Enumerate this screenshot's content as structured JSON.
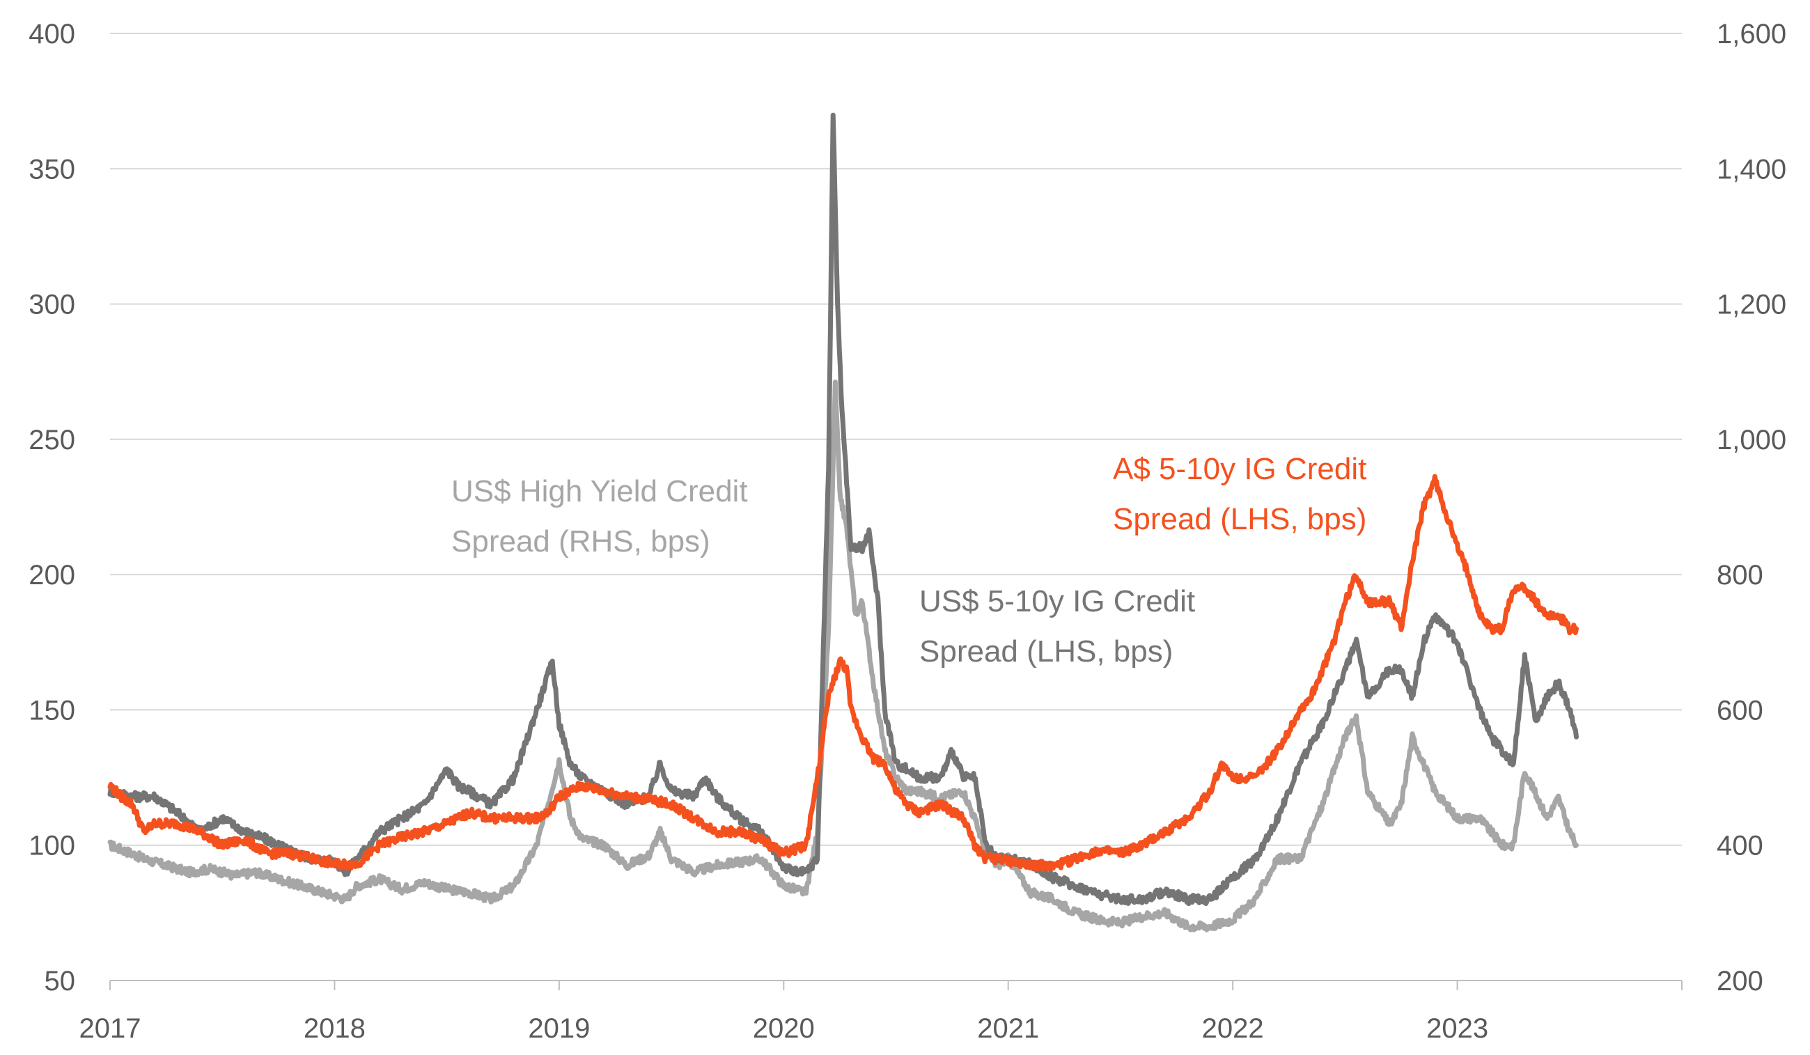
{
  "chart_data": {
    "type": "line",
    "title": "",
    "xlabel": "",
    "ylabel": "",
    "grid": true,
    "x_range": [
      2017.0,
      2024.0
    ],
    "x_tick_labels": [
      "2017",
      "2018",
      "2019",
      "2020",
      "2021",
      "2022",
      "2023"
    ],
    "x_tick_values": [
      2017,
      2018,
      2019,
      2020,
      2021,
      2022,
      2023
    ],
    "y_left": {
      "range": [
        50,
        400
      ],
      "ticks": [
        50,
        100,
        150,
        200,
        250,
        300,
        350,
        400
      ],
      "tick_labels": [
        "50",
        "100",
        "150",
        "200",
        "250",
        "300",
        "350",
        "400"
      ]
    },
    "y_right": {
      "range": [
        200,
        1600
      ],
      "ticks": [
        200,
        400,
        600,
        800,
        1000,
        1200,
        1400,
        1600
      ],
      "tick_labels": [
        "200",
        "400",
        "600",
        "800",
        "1,000",
        "1,200",
        "1,400",
        "1,600"
      ]
    },
    "annotations": [
      {
        "lines": [
          "US$ High Yield Credit",
          "Spread (RHS, bps)"
        ],
        "color": "#a6a6a6",
        "series": "us_hy"
      },
      {
        "lines": [
          "US$ 5-10y IG Credit",
          "Spread (LHS, bps)"
        ],
        "color": "#757575",
        "series": "us_ig"
      },
      {
        "lines": [
          "A$ 5-10y IG Credit",
          "Spread (LHS, bps)"
        ],
        "color": "#f4511e",
        "series": "au_ig"
      }
    ],
    "series": [
      {
        "key": "us_hy",
        "axis": "right",
        "color": "#a6a6a6",
        "x": [
          2017.0,
          2017.08,
          2017.15,
          2017.25,
          2017.35,
          2017.45,
          2017.55,
          2017.65,
          2017.75,
          2017.85,
          2017.95,
          2018.05,
          2018.1,
          2018.2,
          2018.3,
          2018.4,
          2018.5,
          2018.6,
          2018.7,
          2018.8,
          2018.9,
          2018.95,
          2019.0,
          2019.05,
          2019.1,
          2019.2,
          2019.3,
          2019.4,
          2019.45,
          2019.5,
          2019.6,
          2019.7,
          2019.8,
          2019.9,
          2020.0,
          2020.1,
          2020.15,
          2020.2,
          2020.23,
          2020.25,
          2020.28,
          2020.32,
          2020.35,
          2020.4,
          2020.45,
          2020.5,
          2020.55,
          2020.6,
          2020.7,
          2020.8,
          2020.85,
          2020.9,
          2020.95,
          2021.0,
          2021.1,
          2021.2,
          2021.3,
          2021.4,
          2021.5,
          2021.6,
          2021.7,
          2021.8,
          2021.9,
          2022.0,
          2022.1,
          2022.2,
          2022.3,
          2022.4,
          2022.5,
          2022.55,
          2022.6,
          2022.7,
          2022.75,
          2022.8,
          2022.9,
          2023.0,
          2023.1,
          2023.2,
          2023.25,
          2023.3,
          2023.4,
          2023.45,
          2023.5,
          2023.53
        ],
        "y": [
          400,
          390,
          380,
          370,
          360,
          365,
          355,
          360,
          350,
          340,
          330,
          320,
          340,
          350,
          335,
          345,
          335,
          330,
          320,
          340,
          400,
          460,
          525,
          440,
          410,
          400,
          370,
          385,
          420,
          380,
          360,
          370,
          375,
          380,
          340,
          330,
          420,
          720,
          1080,
          920,
          870,
          740,
          760,
          640,
          540,
          500,
          480,
          480,
          470,
          480,
          440,
          390,
          370,
          380,
          330,
          320,
          300,
          290,
          285,
          295,
          300,
          280,
          280,
          290,
          320,
          380,
          380,
          460,
          560,
          590,
          480,
          430,
          460,
          560,
          480,
          440,
          440,
          400,
          400,
          510,
          440,
          470,
          420,
          400
        ]
      },
      {
        "key": "us_ig",
        "axis": "left",
        "color": "#757575",
        "x": [
          2017.0,
          2017.1,
          2017.2,
          2017.3,
          2017.4,
          2017.5,
          2017.6,
          2017.7,
          2017.8,
          2017.9,
          2018.0,
          2018.05,
          2018.1,
          2018.2,
          2018.3,
          2018.4,
          2018.5,
          2018.55,
          2018.6,
          2018.7,
          2018.8,
          2018.9,
          2018.97,
          2019.0,
          2019.05,
          2019.1,
          2019.2,
          2019.3,
          2019.4,
          2019.45,
          2019.5,
          2019.6,
          2019.65,
          2019.7,
          2019.8,
          2019.9,
          2020.0,
          2020.05,
          2020.1,
          2020.15,
          2020.2,
          2020.22,
          2020.24,
          2020.26,
          2020.3,
          2020.35,
          2020.38,
          2020.42,
          2020.45,
          2020.5,
          2020.55,
          2020.6,
          2020.7,
          2020.75,
          2020.8,
          2020.85,
          2020.9,
          2020.95,
          2021.0,
          2021.1,
          2021.2,
          2021.3,
          2021.4,
          2021.5,
          2021.6,
          2021.7,
          2021.8,
          2021.9,
          2022.0,
          2022.1,
          2022.2,
          2022.3,
          2022.4,
          2022.5,
          2022.55,
          2022.6,
          2022.7,
          2022.75,
          2022.8,
          2022.85,
          2022.9,
          2023.0,
          2023.1,
          2023.15,
          2023.2,
          2023.25,
          2023.3,
          2023.35,
          2023.4,
          2023.45,
          2023.5,
          2023.53
        ],
        "y": [
          120,
          118,
          118,
          112,
          105,
          110,
          105,
          102,
          98,
          95,
          94,
          90,
          95,
          105,
          110,
          115,
          128,
          122,
          120,
          115,
          125,
          150,
          168,
          145,
          130,
          125,
          120,
          115,
          118,
          130,
          120,
          118,
          125,
          118,
          110,
          105,
          92,
          90,
          90,
          95,
          240,
          370,
          300,
          260,
          210,
          210,
          215,
          190,
          150,
          130,
          128,
          125,
          125,
          135,
          125,
          125,
          100,
          95,
          95,
          93,
          88,
          85,
          82,
          80,
          80,
          83,
          80,
          80,
          88,
          95,
          110,
          130,
          145,
          165,
          175,
          155,
          165,
          165,
          155,
          175,
          185,
          175,
          150,
          140,
          135,
          130,
          170,
          145,
          155,
          160,
          150,
          140
        ]
      },
      {
        "key": "au_ig",
        "axis": "left",
        "color": "#f4511e",
        "x": [
          2017.0,
          2017.05,
          2017.1,
          2017.15,
          2017.2,
          2017.3,
          2017.4,
          2017.5,
          2017.6,
          2017.7,
          2017.8,
          2017.9,
          2018.0,
          2018.1,
          2018.2,
          2018.3,
          2018.4,
          2018.5,
          2018.6,
          2018.7,
          2018.8,
          2018.9,
          2018.95,
          2019.0,
          2019.1,
          2019.2,
          2019.3,
          2019.4,
          2019.5,
          2019.6,
          2019.7,
          2019.8,
          2019.9,
          2020.0,
          2020.1,
          2020.15,
          2020.2,
          2020.25,
          2020.28,
          2020.3,
          2020.35,
          2020.4,
          2020.45,
          2020.5,
          2020.55,
          2020.6,
          2020.7,
          2020.8,
          2020.85,
          2020.9,
          2020.95,
          2021.0,
          2021.1,
          2021.2,
          2021.3,
          2021.4,
          2021.5,
          2021.6,
          2021.7,
          2021.8,
          2021.9,
          2021.95,
          2022.0,
          2022.1,
          2022.2,
          2022.3,
          2022.35,
          2022.4,
          2022.45,
          2022.5,
          2022.55,
          2022.6,
          2022.7,
          2022.75,
          2022.8,
          2022.85,
          2022.9,
          2023.0,
          2023.05,
          2023.1,
          2023.15,
          2023.2,
          2023.25,
          2023.3,
          2023.35,
          2023.4,
          2023.45,
          2023.5,
          2023.53
        ],
        "y": [
          122,
          118,
          115,
          105,
          108,
          108,
          105,
          100,
          102,
          97,
          97,
          95,
          93,
          93,
          100,
          103,
          105,
          108,
          112,
          110,
          110,
          110,
          112,
          118,
          122,
          120,
          118,
          117,
          115,
          110,
          105,
          105,
          102,
          97,
          100,
          125,
          155,
          168,
          165,
          150,
          140,
          132,
          130,
          120,
          115,
          112,
          115,
          110,
          100,
          95,
          95,
          94,
          93,
          92,
          95,
          98,
          97,
          100,
          105,
          110,
          120,
          130,
          125,
          125,
          135,
          150,
          155,
          165,
          175,
          190,
          200,
          190,
          190,
          180,
          205,
          225,
          235,
          210,
          200,
          185,
          180,
          180,
          195,
          195,
          190,
          185,
          185,
          180,
          180
        ]
      }
    ]
  }
}
